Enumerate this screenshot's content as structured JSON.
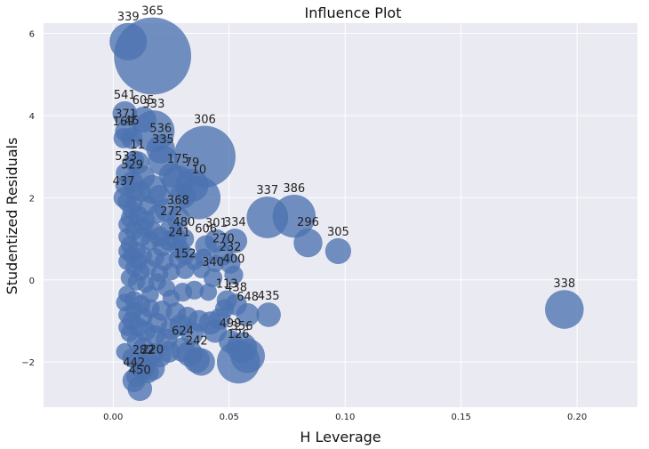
{
  "chart_data": {
    "type": "scatter",
    "title": "Influence Plot",
    "xlabel": "H Leverage",
    "ylabel": "Studentized Residuals",
    "xlim": [
      -0.03,
      0.226
    ],
    "ylim": [
      -3.1,
      6.25
    ],
    "xticks": [
      0.0,
      0.05,
      0.1,
      0.15,
      0.2
    ],
    "xtick_labels": [
      "0.00",
      "0.05",
      "0.10",
      "0.15",
      "0.20"
    ],
    "yticks": [
      -2,
      0,
      2,
      4,
      6
    ],
    "ytick_labels": [
      "−2",
      "0",
      "2",
      "4",
      "6"
    ],
    "grid": true,
    "style": {
      "background": "#eaeaf2",
      "grid": "#ffffff",
      "marker": "#4c72b0"
    },
    "annotated_points": [
      {
        "label": "339",
        "x": 0.0065,
        "y": 5.8,
        "size": 1.0
      },
      {
        "label": "365",
        "x": 0.017,
        "y": 5.45,
        "size": 2.4
      },
      {
        "label": "541",
        "x": 0.005,
        "y": 4.05,
        "size": 0.55
      },
      {
        "label": "605",
        "x": 0.013,
        "y": 3.9,
        "size": 0.6
      },
      {
        "label": "371",
        "x": 0.0055,
        "y": 3.62,
        "size": 0.45
      },
      {
        "label": "333",
        "x": 0.0175,
        "y": 3.62,
        "size": 1.15
      },
      {
        "label": "536",
        "x": 0.0205,
        "y": 3.18,
        "size": 0.7
      },
      {
        "label": "169",
        "x": 0.0045,
        "y": 3.45,
        "size": 0.4
      },
      {
        "label": "46",
        "x": 0.008,
        "y": 3.45,
        "size": 0.45
      },
      {
        "label": "335",
        "x": 0.0215,
        "y": 2.9,
        "size": 0.75
      },
      {
        "label": "306",
        "x": 0.0395,
        "y": 3.0,
        "size": 1.85
      },
      {
        "label": "11",
        "x": 0.0105,
        "y": 2.85,
        "size": 0.5
      },
      {
        "label": "533",
        "x": 0.0055,
        "y": 2.6,
        "size": 0.4
      },
      {
        "label": "529",
        "x": 0.0082,
        "y": 2.38,
        "size": 0.45
      },
      {
        "label": "175",
        "x": 0.028,
        "y": 2.4,
        "size": 0.8
      },
      {
        "label": "79",
        "x": 0.034,
        "y": 2.3,
        "size": 0.85
      },
      {
        "label": "10",
        "x": 0.037,
        "y": 2.0,
        "size": 1.2
      },
      {
        "label": "437",
        "x": 0.0045,
        "y": 2.0,
        "size": 0.4
      },
      {
        "label": "337",
        "x": 0.0665,
        "y": 1.52,
        "size": 1.15
      },
      {
        "label": "386",
        "x": 0.078,
        "y": 1.55,
        "size": 1.2
      },
      {
        "label": "296",
        "x": 0.084,
        "y": 0.9,
        "size": 0.7
      },
      {
        "label": "305",
        "x": 0.097,
        "y": 0.7,
        "size": 0.6
      },
      {
        "label": "338",
        "x": 0.1945,
        "y": -0.72,
        "size": 1.05
      },
      {
        "label": "368",
        "x": 0.028,
        "y": 1.5,
        "size": 0.5
      },
      {
        "label": "272",
        "x": 0.025,
        "y": 1.25,
        "size": 0.45
      },
      {
        "label": "301",
        "x": 0.0445,
        "y": 0.95,
        "size": 0.5
      },
      {
        "label": "334",
        "x": 0.0525,
        "y": 0.95,
        "size": 0.55
      },
      {
        "label": "606",
        "x": 0.04,
        "y": 0.82,
        "size": 0.45
      },
      {
        "label": "480",
        "x": 0.0305,
        "y": 1.0,
        "size": 0.4
      },
      {
        "label": "241",
        "x": 0.0285,
        "y": 0.75,
        "size": 0.4
      },
      {
        "label": "270",
        "x": 0.0475,
        "y": 0.6,
        "size": 0.4
      },
      {
        "label": "232",
        "x": 0.0505,
        "y": 0.4,
        "size": 0.4
      },
      {
        "label": "400",
        "x": 0.052,
        "y": 0.12,
        "size": 0.35
      },
      {
        "label": "340",
        "x": 0.043,
        "y": 0.05,
        "size": 0.35
      },
      {
        "label": "152",
        "x": 0.031,
        "y": 0.25,
        "size": 0.35
      },
      {
        "label": "113",
        "x": 0.049,
        "y": -0.5,
        "size": 0.4
      },
      {
        "label": "438",
        "x": 0.053,
        "y": -0.6,
        "size": 0.45
      },
      {
        "label": "648",
        "x": 0.058,
        "y": -0.85,
        "size": 0.5
      },
      {
        "label": "435",
        "x": 0.067,
        "y": -0.85,
        "size": 0.55
      },
      {
        "label": "499",
        "x": 0.0505,
        "y": -1.5,
        "size": 0.5
      },
      {
        "label": "356",
        "x": 0.0555,
        "y": -1.65,
        "size": 0.75
      },
      {
        "label": "126",
        "x": 0.054,
        "y": -2.0,
        "size": 1.2
      },
      {
        "label": "624",
        "x": 0.03,
        "y": -1.7,
        "size": 0.55
      },
      {
        "label": "242",
        "x": 0.036,
        "y": -1.95,
        "size": 0.6
      },
      {
        "label": "442",
        "x": 0.009,
        "y": -2.45,
        "size": 0.5
      },
      {
        "label": "450",
        "x": 0.0115,
        "y": -2.65,
        "size": 0.55
      },
      {
        "label": "282",
        "x": 0.013,
        "y": -2.15,
        "size": 0.5
      },
      {
        "label": "220",
        "x": 0.017,
        "y": -2.15,
        "size": 0.55
      }
    ],
    "unlabeled_points": [
      {
        "x": 0.017,
        "y": 2.2,
        "size": 0.7
      },
      {
        "x": 0.013,
        "y": 2.5,
        "size": 0.5
      },
      {
        "x": 0.009,
        "y": 2.9,
        "size": 0.4
      },
      {
        "x": 0.006,
        "y": 1.9,
        "size": 0.35
      },
      {
        "x": 0.008,
        "y": 1.7,
        "size": 0.35
      },
      {
        "x": 0.011,
        "y": 1.55,
        "size": 0.4
      },
      {
        "x": 0.014,
        "y": 1.45,
        "size": 0.35
      },
      {
        "x": 0.006,
        "y": 1.35,
        "size": 0.3
      },
      {
        "x": 0.009,
        "y": 1.2,
        "size": 0.35
      },
      {
        "x": 0.012,
        "y": 1.05,
        "size": 0.4
      },
      {
        "x": 0.016,
        "y": 0.95,
        "size": 0.35
      },
      {
        "x": 0.02,
        "y": 1.05,
        "size": 0.4
      },
      {
        "x": 0.007,
        "y": 0.85,
        "size": 0.3
      },
      {
        "x": 0.01,
        "y": 0.7,
        "size": 0.35
      },
      {
        "x": 0.013,
        "y": 0.6,
        "size": 0.3
      },
      {
        "x": 0.018,
        "y": 0.55,
        "size": 0.35
      },
      {
        "x": 0.022,
        "y": 0.45,
        "size": 0.35
      },
      {
        "x": 0.006,
        "y": 0.45,
        "size": 0.3
      },
      {
        "x": 0.009,
        "y": 0.3,
        "size": 0.3
      },
      {
        "x": 0.012,
        "y": 0.2,
        "size": 0.3
      },
      {
        "x": 0.015,
        "y": 0.3,
        "size": 0.3
      },
      {
        "x": 0.025,
        "y": 0.2,
        "size": 0.3
      },
      {
        "x": 0.028,
        "y": 0.5,
        "size": 0.35
      },
      {
        "x": 0.035,
        "y": 0.45,
        "size": 0.3
      },
      {
        "x": 0.038,
        "y": 0.25,
        "size": 0.3
      },
      {
        "x": 0.007,
        "y": 0.05,
        "size": 0.3
      },
      {
        "x": 0.01,
        "y": -0.05,
        "size": 0.3
      },
      {
        "x": 0.014,
        "y": -0.1,
        "size": 0.3
      },
      {
        "x": 0.019,
        "y": -0.05,
        "size": 0.3
      },
      {
        "x": 0.023,
        "y": -0.2,
        "size": 0.3
      },
      {
        "x": 0.03,
        "y": -0.3,
        "size": 0.35
      },
      {
        "x": 0.035,
        "y": -0.25,
        "size": 0.35
      },
      {
        "x": 0.006,
        "y": -0.35,
        "size": 0.3
      },
      {
        "x": 0.009,
        "y": -0.5,
        "size": 0.35
      },
      {
        "x": 0.012,
        "y": -0.6,
        "size": 0.35
      },
      {
        "x": 0.016,
        "y": -0.7,
        "size": 0.35
      },
      {
        "x": 0.021,
        "y": -0.75,
        "size": 0.4
      },
      {
        "x": 0.027,
        "y": -0.8,
        "size": 0.4
      },
      {
        "x": 0.032,
        "y": -0.9,
        "size": 0.4
      },
      {
        "x": 0.037,
        "y": -1.0,
        "size": 0.45
      },
      {
        "x": 0.042,
        "y": -1.05,
        "size": 0.5
      },
      {
        "x": 0.046,
        "y": -0.95,
        "size": 0.45
      },
      {
        "x": 0.006,
        "y": -0.85,
        "size": 0.3
      },
      {
        "x": 0.008,
        "y": -1.0,
        "size": 0.35
      },
      {
        "x": 0.011,
        "y": -1.15,
        "size": 0.35
      },
      {
        "x": 0.014,
        "y": -1.25,
        "size": 0.4
      },
      {
        "x": 0.018,
        "y": -1.35,
        "size": 0.4
      },
      {
        "x": 0.023,
        "y": -1.45,
        "size": 0.45
      },
      {
        "x": 0.007,
        "y": -1.3,
        "size": 0.3
      },
      {
        "x": 0.01,
        "y": -1.5,
        "size": 0.35
      },
      {
        "x": 0.013,
        "y": -1.65,
        "size": 0.4
      },
      {
        "x": 0.017,
        "y": -1.8,
        "size": 0.45
      },
      {
        "x": 0.02,
        "y": -1.85,
        "size": 0.5
      },
      {
        "x": 0.024,
        "y": -1.75,
        "size": 0.45
      },
      {
        "x": 0.033,
        "y": -1.8,
        "size": 0.6
      },
      {
        "x": 0.038,
        "y": -2.0,
        "size": 0.65
      },
      {
        "x": 0.058,
        "y": -1.85,
        "size": 0.9
      },
      {
        "x": 0.008,
        "y": -1.9,
        "size": 0.35
      },
      {
        "x": 0.011,
        "y": -2.0,
        "size": 0.4
      },
      {
        "x": 0.015,
        "y": -2.25,
        "size": 0.45
      },
      {
        "x": 0.005,
        "y": -1.75,
        "size": 0.3
      },
      {
        "x": 0.01,
        "y": -2.35,
        "size": 0.4
      },
      {
        "x": 0.007,
        "y": 1.5,
        "size": 0.3
      },
      {
        "x": 0.009,
        "y": 1.85,
        "size": 0.3
      },
      {
        "x": 0.012,
        "y": 2.15,
        "size": 0.4
      },
      {
        "x": 0.015,
        "y": 1.8,
        "size": 0.35
      },
      {
        "x": 0.019,
        "y": 1.6,
        "size": 0.35
      },
      {
        "x": 0.023,
        "y": 1.7,
        "size": 0.5
      },
      {
        "x": 0.027,
        "y": 1.0,
        "size": 0.45
      },
      {
        "x": 0.031,
        "y": 0.6,
        "size": 0.35
      },
      {
        "x": 0.039,
        "y": 0.55,
        "size": 0.3
      },
      {
        "x": 0.044,
        "y": 0.4,
        "size": 0.3
      },
      {
        "x": 0.041,
        "y": -0.3,
        "size": 0.3
      },
      {
        "x": 0.048,
        "y": -0.7,
        "size": 0.35
      },
      {
        "x": 0.029,
        "y": -1.1,
        "size": 0.45
      },
      {
        "x": 0.025,
        "y": -0.45,
        "size": 0.3
      },
      {
        "x": 0.02,
        "y": 0.15,
        "size": 0.3
      },
      {
        "x": 0.011,
        "y": 0.45,
        "size": 0.3
      },
      {
        "x": 0.008,
        "y": 0.6,
        "size": 0.3
      },
      {
        "x": 0.006,
        "y": 1.05,
        "size": 0.3
      },
      {
        "x": 0.013,
        "y": 1.3,
        "size": 0.35
      },
      {
        "x": 0.017,
        "y": 1.2,
        "size": 0.35
      },
      {
        "x": 0.021,
        "y": 0.8,
        "size": 0.35
      },
      {
        "x": 0.024,
        "y": 0.95,
        "size": 0.4
      },
      {
        "x": 0.016,
        "y": -0.35,
        "size": 0.3
      },
      {
        "x": 0.013,
        "y": -0.9,
        "size": 0.35
      },
      {
        "x": 0.009,
        "y": -0.75,
        "size": 0.3
      },
      {
        "x": 0.019,
        "y": -1.05,
        "size": 0.4
      },
      {
        "x": 0.025,
        "y": -1.2,
        "size": 0.45
      },
      {
        "x": 0.034,
        "y": -1.3,
        "size": 0.5
      },
      {
        "x": 0.044,
        "y": -1.25,
        "size": 0.5
      },
      {
        "x": 0.006,
        "y": -1.15,
        "size": 0.3
      },
      {
        "x": 0.005,
        "y": -0.55,
        "size": 0.3
      },
      {
        "x": 0.006,
        "y": 0.7,
        "size": 0.3
      },
      {
        "x": 0.005,
        "y": 2.3,
        "size": 0.35
      },
      {
        "x": 0.009,
        "y": 2.15,
        "size": 0.35
      },
      {
        "x": 0.02,
        "y": 2.05,
        "size": 0.45
      },
      {
        "x": 0.025,
        "y": 2.55,
        "size": 0.55
      },
      {
        "x": 0.03,
        "y": 2.05,
        "size": 0.6
      }
    ]
  }
}
